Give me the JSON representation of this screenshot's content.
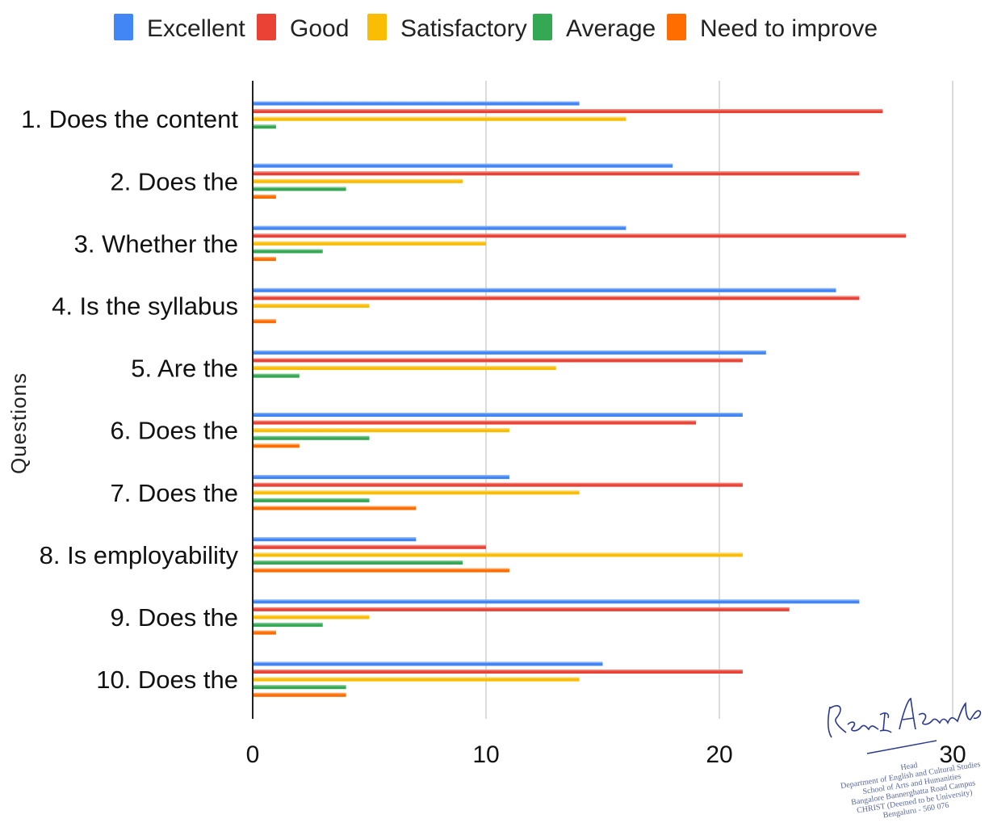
{
  "chart_data": {
    "type": "bar",
    "orientation": "horizontal",
    "title": "",
    "xlabel": "",
    "ylabel": "Questions",
    "xlim": [
      0,
      30
    ],
    "x_ticks": [
      "0",
      "10",
      "20",
      "30"
    ],
    "x_tick_values": [
      0,
      10,
      20,
      30
    ],
    "grid": true,
    "legend_position": "top",
    "categories": [
      "1. Does the content",
      "2. Does the",
      "3. Whether the",
      "4. Is the syllabus",
      "5. Are the",
      "6. Does the",
      "7. Does the",
      "8. Is employability",
      "9. Does the",
      "10. Does the"
    ],
    "series": [
      {
        "name": "Excellent",
        "color": "#4285f4",
        "values": [
          14,
          18,
          16,
          25,
          22,
          21,
          11,
          7,
          26,
          15
        ]
      },
      {
        "name": "Good",
        "color": "#ea4335",
        "values": [
          27,
          26,
          28,
          26,
          21,
          19,
          21,
          10,
          23,
          21
        ]
      },
      {
        "name": "Satisfactory",
        "color": "#fbbc04",
        "values": [
          16,
          9,
          10,
          5,
          13,
          11,
          14,
          21,
          5,
          14
        ]
      },
      {
        "name": "Average",
        "color": "#34a853",
        "values": [
          1,
          4,
          3,
          0,
          2,
          5,
          5,
          9,
          3,
          4
        ]
      },
      {
        "name": "Need to improve",
        "color": "#ff6d01",
        "values": [
          0,
          1,
          1,
          1,
          0,
          2,
          7,
          11,
          1,
          4
        ]
      }
    ]
  },
  "stamp": {
    "signature": "Renu E. Abraham",
    "lines": [
      "Head",
      "Department of English and Cultural Studies",
      "School of Arts and Humanities",
      "Bangalore Bannerghatta Road Campus",
      "CHRIST (Deemed to be University)",
      "Bengaluru - 560 076"
    ]
  }
}
